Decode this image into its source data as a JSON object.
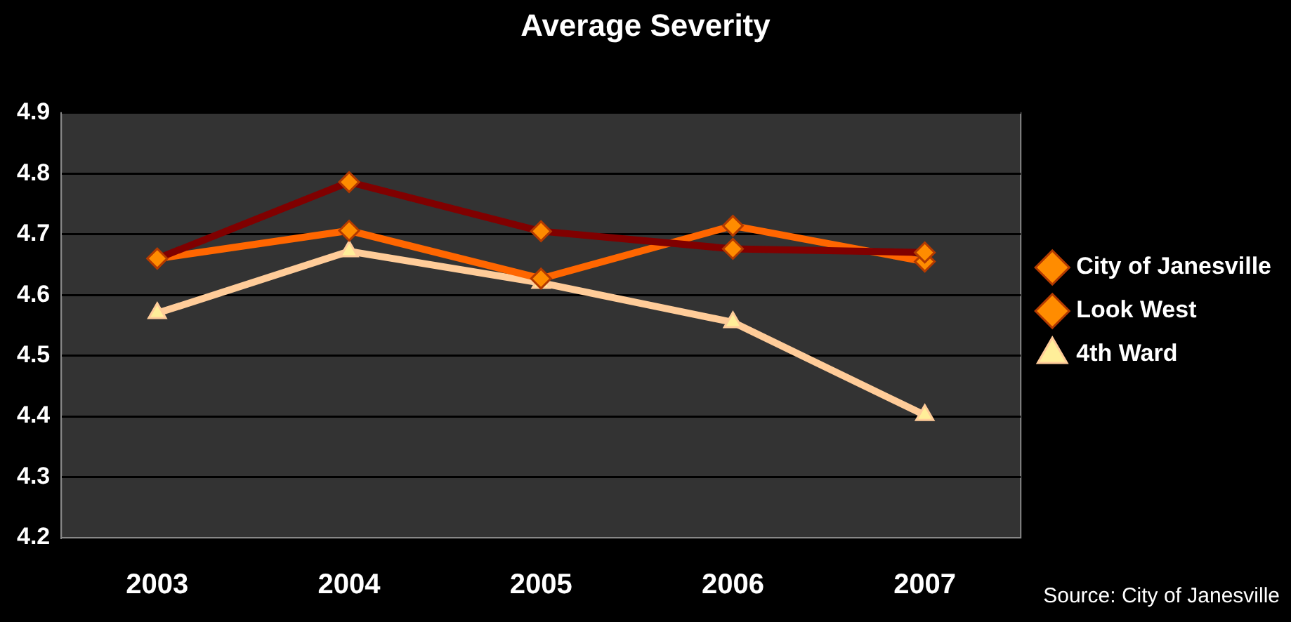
{
  "chart_data": {
    "type": "line",
    "title": "Average Severity",
    "categories": [
      "2003",
      "2004",
      "2005",
      "2006",
      "2007"
    ],
    "series": [
      {
        "name": "City of Janesville",
        "color": "#800000",
        "values": [
          4.66,
          4.786,
          4.705,
          4.676,
          4.67
        ],
        "marker": "diamond"
      },
      {
        "name": "Look West",
        "color": "#ff6600",
        "values": [
          4.66,
          4.706,
          4.627,
          4.714,
          4.655
        ],
        "marker": "diamond"
      },
      {
        "name": "4th Ward",
        "color": "#ffcc99",
        "values": [
          4.57,
          4.672,
          4.62,
          4.555,
          4.402
        ],
        "marker": "triangle"
      }
    ],
    "ylim": [
      4.2,
      4.9
    ],
    "yticks": [
      4.2,
      4.3,
      4.4,
      4.5,
      4.6,
      4.7,
      4.8,
      4.9
    ],
    "grid": "y",
    "legend": "right",
    "annotations": [
      "Source: City of Janesville"
    ]
  }
}
